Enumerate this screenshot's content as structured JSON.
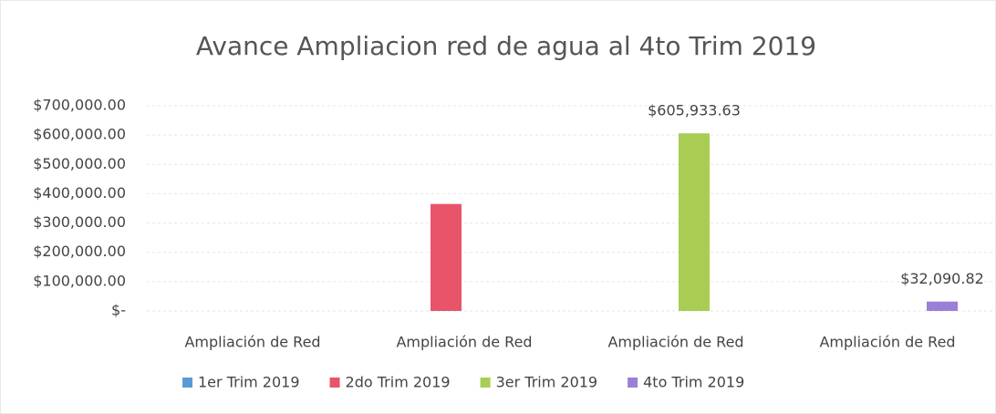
{
  "chart_data": {
    "type": "bar",
    "title": "Avance Ampliacion red de agua al 4to Trim 2019",
    "categories": [
      "Ampliación de Red",
      "Ampliación de Red",
      "Ampliación de Red",
      "Ampliación de Red"
    ],
    "series": [
      {
        "name": "1er Trim 2019",
        "color": "#5b9bd5",
        "values": [
          null,
          null,
          null,
          null
        ]
      },
      {
        "name": "2do Trim 2019",
        "color": "#e8546a",
        "values": [
          null,
          365000,
          null,
          null
        ]
      },
      {
        "name": "3er Trim 2019",
        "color": "#a9cd52",
        "values": [
          null,
          null,
          605933.63,
          null
        ],
        "value_labels": [
          null,
          null,
          "$605,933.63",
          null
        ]
      },
      {
        "name": "4to Trim 2019",
        "color": "#9b7fd6",
        "values": [
          null,
          null,
          null,
          32090.82
        ],
        "value_labels": [
          null,
          null,
          null,
          "$32,090.82"
        ]
      }
    ],
    "ylim": [
      0,
      700000
    ],
    "yticks": [
      {
        "value": 0,
        "label": "$-"
      },
      {
        "value": 100000,
        "label": "$100,000.00"
      },
      {
        "value": 200000,
        "label": "$200,000.00"
      },
      {
        "value": 300000,
        "label": "$300,000.00"
      },
      {
        "value": 400000,
        "label": "$400,000.00"
      },
      {
        "value": 500000,
        "label": "$500,000.00"
      },
      {
        "value": 600000,
        "label": "$600,000.00"
      },
      {
        "value": 700000,
        "label": "$700,000.00"
      }
    ],
    "grid": true,
    "legend": "bottom"
  }
}
